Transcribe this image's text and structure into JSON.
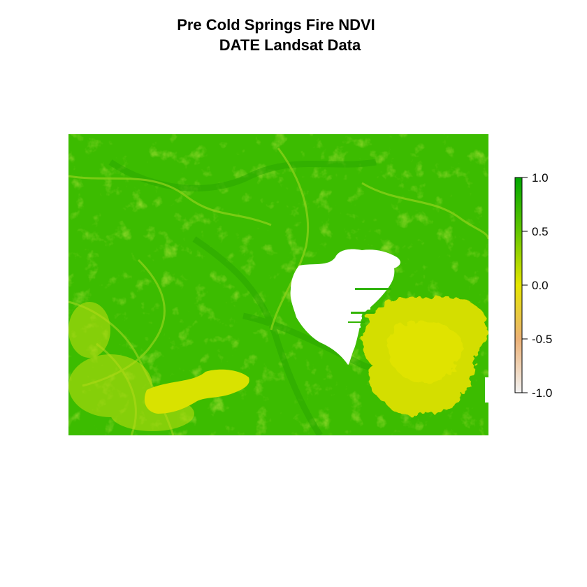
{
  "chart_data": {
    "type": "heatmap",
    "title_line1": "Pre Cold Springs Fire NDVI",
    "title_line2": "DATE Landsat Data",
    "xlabel": "",
    "ylabel": "",
    "legend": {
      "placement": "right",
      "zlim": [
        -1.0,
        1.0
      ],
      "ticks": [
        {
          "value": 1.0,
          "label": "1.0"
        },
        {
          "value": 0.5,
          "label": "0.5"
        },
        {
          "value": 0.0,
          "label": "0.0"
        },
        {
          "value": -0.5,
          "label": "-0.5"
        },
        {
          "value": -1.0,
          "label": "-1.0"
        }
      ],
      "color_stops": [
        {
          "value": -1.0,
          "color": "#f2f2f2"
        },
        {
          "value": -0.5,
          "color": "#ecb176"
        },
        {
          "value": 0.0,
          "color": "#e6e600"
        },
        {
          "value": 0.5,
          "color": "#63c600"
        },
        {
          "value": 1.0,
          "color": "#00a600"
        }
      ]
    },
    "raster_summary": {
      "background_ndvi": 0.62,
      "no_data_color": "#ffffff"
    }
  }
}
